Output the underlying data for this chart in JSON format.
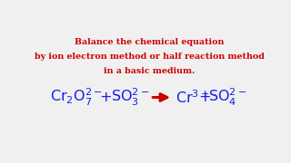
{
  "bg_color": "#f0f0f0",
  "title_line1": "Balance the chemical equation",
  "title_line2": "by ion electron method or half reaction method",
  "title_line3": "in a basic medium.",
  "title_color": "#cc0000",
  "eq_color": "#1a1aee",
  "arrow_color": "#cc0000",
  "title_fontsize": 6.8,
  "eq_fontsize": 11.5,
  "plus_fontsize": 11.5
}
